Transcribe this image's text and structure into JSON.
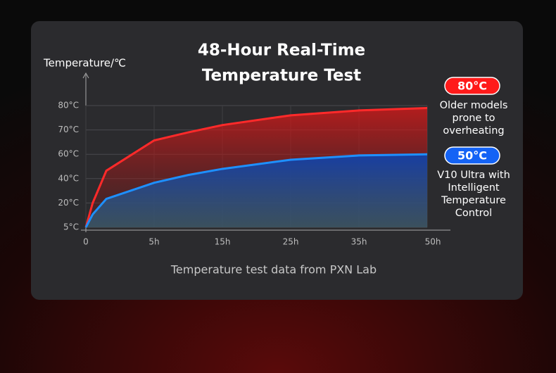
{
  "chart_data": {
    "type": "line",
    "title": [
      "48-Hour Real-Time",
      "Temperature Test"
    ],
    "y_label": "Temperature/℃",
    "footnote": "Temperature test data from PXN Lab",
    "x": [
      0,
      0.5,
      1.5,
      5,
      10,
      15,
      25,
      35,
      50
    ],
    "series": [
      {
        "name": "Older models",
        "color": "#ff2a2a",
        "values": [
          5,
          20,
          46.5,
          65.7,
          69,
          72,
          76,
          78,
          79
        ]
      },
      {
        "name": "V10 Ultra",
        "color": "#1e90ff",
        "values": [
          5,
          13,
          23.4,
          36.6,
          43,
          48,
          55.5,
          59,
          60
        ]
      }
    ],
    "xticks": [
      0,
      {
        "value": 5,
        "label": "5h"
      },
      {
        "value": 15,
        "label": "15h"
      },
      {
        "value": 25,
        "label": "25h"
      },
      {
        "value": 35,
        "label": "35h"
      },
      {
        "value": 50,
        "label": "50h"
      }
    ],
    "yticks": [
      {
        "value": 5,
        "label": "5°C"
      },
      {
        "value": 20,
        "label": "20°C"
      },
      {
        "value": 40,
        "label": "40°C"
      },
      {
        "value": 60,
        "label": "60°C"
      },
      {
        "value": 70,
        "label": "70°C"
      },
      {
        "value": 80,
        "label": "80°C"
      }
    ],
    "xlim": [
      0,
      50
    ],
    "ylim": [
      5,
      80
    ],
    "grid": true,
    "annotations": [
      {
        "badge": "80°C",
        "color": "#ff1a1a",
        "text": [
          "Older models",
          "prone to",
          "overheating"
        ]
      },
      {
        "badge": "50°C",
        "color": "#1463f5",
        "text": [
          "V10 Ultra with",
          "Intelligent",
          "Temperature",
          "Control"
        ]
      }
    ]
  }
}
